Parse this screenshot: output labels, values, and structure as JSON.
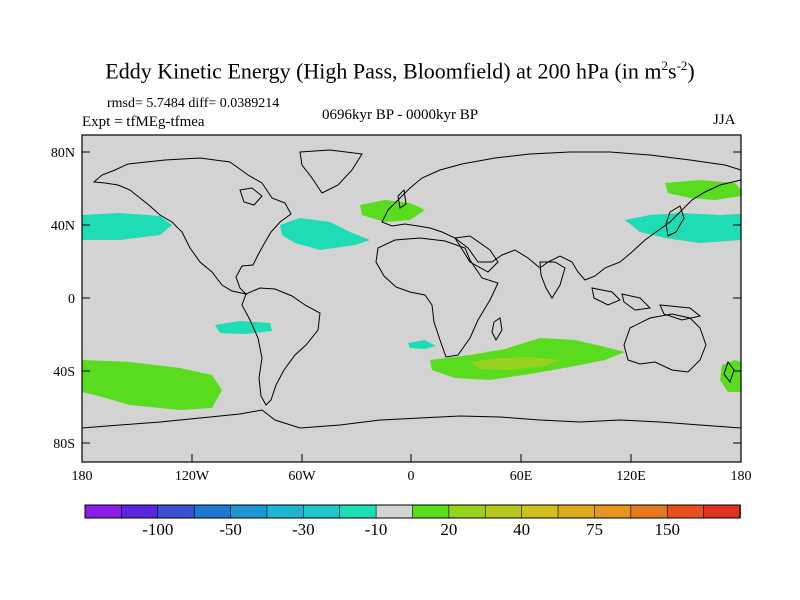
{
  "title": {
    "main": "Eddy Kinetic Energy (High Pass, Bloomfield) at 200 hPa (in m",
    "sup1": "2",
    "mid": "s",
    "sup2": "-2",
    "end": ")"
  },
  "stats": "rmsd= 5.7484 diff= 0.0389214",
  "experiment": "Expt = tfMEg-tfmea",
  "period": "0696kyr BP - 0000kyr BP",
  "season": "JJA",
  "map": {
    "lat_labels": [
      "80N",
      "40N",
      "0",
      "40S",
      "80S"
    ],
    "lon_labels": [
      "180",
      "120W",
      "60W",
      "0",
      "60E",
      "120E",
      "180"
    ],
    "background_color": "#d3d3d3"
  },
  "colorbar": {
    "colors": [
      "#8a1ee6",
      "#5a28dc",
      "#3c50d2",
      "#1e78d2",
      "#1e96d2",
      "#1eb4d2",
      "#1ec8c8",
      "#1edcb4",
      "#d3d3d3",
      "#5adc1e",
      "#96d21e",
      "#b4c81e",
      "#d2be1e",
      "#dcaa1e",
      "#e6961e",
      "#e6781e",
      "#e6501e",
      "#dc321e"
    ],
    "labels": [
      "-100",
      "-50",
      "-30",
      "-10",
      "20",
      "40",
      "75",
      "150"
    ]
  }
}
